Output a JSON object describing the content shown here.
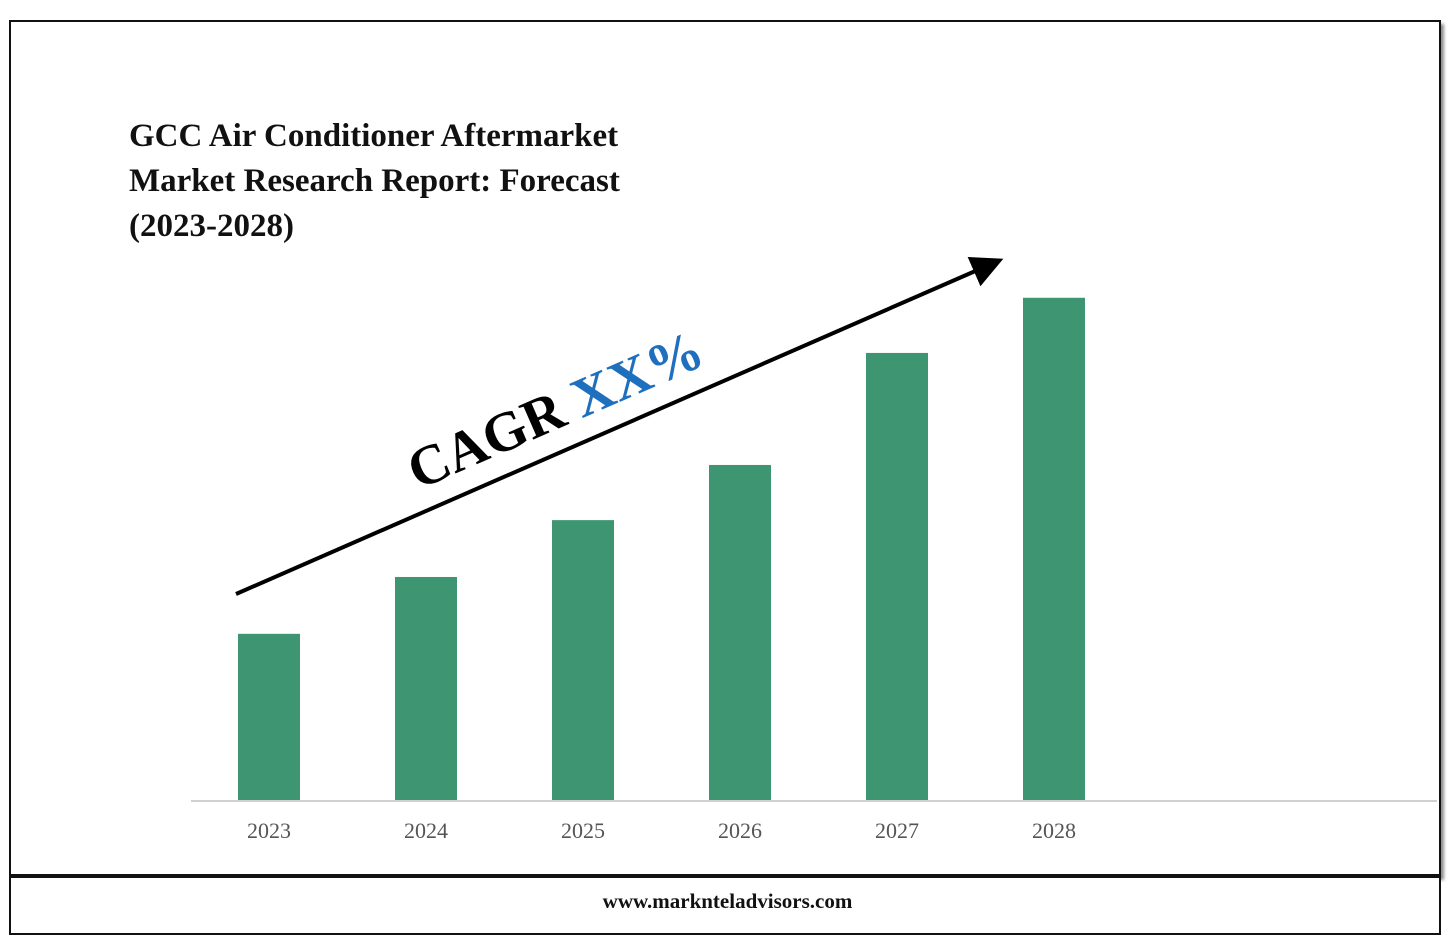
{
  "header": {
    "title_lines": [
      "GCC Air Conditioner Aftermarket",
      "Market Research Report: Forecast",
      "(2023-2028)"
    ]
  },
  "annotation": {
    "prefix": "CAGR",
    "value": "XX%"
  },
  "footer": {
    "website": "www.marknteladvisors.com"
  },
  "colors": {
    "bar": "#3d9571",
    "cagr_value": "#1f6fbf",
    "axis": "#d0d0d0",
    "tick_label": "#555555"
  },
  "chart_data": {
    "type": "bar",
    "title": "GCC Air Conditioner Aftermarket Market Research Report: Forecast (2023-2028)",
    "categories": [
      "2023",
      "2024",
      "2025",
      "2026",
      "2027",
      "2028"
    ],
    "values": [
      1.0,
      1.34,
      1.68,
      2.01,
      2.68,
      3.01
    ],
    "ylim": [
      0,
      3.2
    ],
    "xlabel": "",
    "ylabel": "",
    "grid": false,
    "legend": "none"
  }
}
